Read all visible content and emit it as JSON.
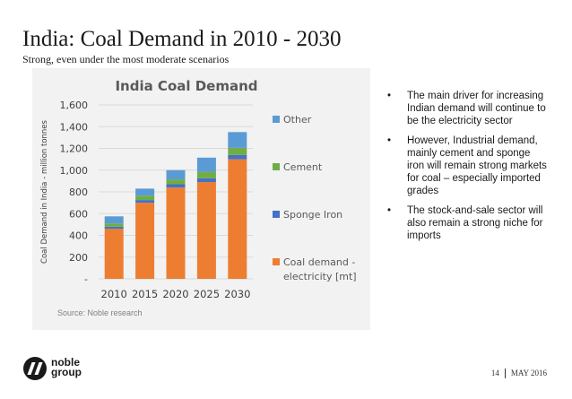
{
  "header": {
    "title": "India: Coal Demand in 2010 - 2030",
    "subtitle": "Strong, even under the most moderate scenarios"
  },
  "chart_data": {
    "type": "bar",
    "stacked": true,
    "title": "India Coal Demand",
    "ylabel": "Coal Demand in India - million tonnes",
    "xlabel": "",
    "categories": [
      "2010",
      "2015",
      "2020",
      "2025",
      "2030"
    ],
    "ylim": [
      0,
      1600
    ],
    "yticks": [
      0,
      200,
      400,
      600,
      800,
      1000,
      1200,
      1400,
      1600
    ],
    "ytick_labels": [
      "-",
      "200",
      "400",
      "600",
      "800",
      "1,000",
      "1,200",
      "1,400",
      "1,600"
    ],
    "grid": true,
    "legend_position": "right",
    "series": [
      {
        "name": "Coal demand - electricity [mt]",
        "color": "#ed7d31",
        "values": [
          460,
          700,
          840,
          890,
          1100
        ]
      },
      {
        "name": "Sponge Iron",
        "color": "#4472c4",
        "values": [
          20,
          25,
          30,
          35,
          40
        ]
      },
      {
        "name": "Cement",
        "color": "#70ad47",
        "values": [
          30,
          40,
          45,
          60,
          65
        ]
      },
      {
        "name": "Other",
        "color": "#5b9bd5",
        "values": [
          65,
          65,
          85,
          130,
          145
        ]
      }
    ],
    "legend_order": [
      "Other",
      "Cement",
      "Sponge Iron",
      "Coal demand - electricity [mt]"
    ],
    "source": "Source: Noble research"
  },
  "bullets": {
    "marker": "•",
    "items": [
      "The main driver for increasing Indian demand will continue to be the electricity sector",
      "However, Industrial demand, mainly cement and sponge iron will remain strong markets for coal – especially imported grades",
      "The stock-and-sale sector will also remain a strong niche for imports"
    ]
  },
  "logo": {
    "line1": "noble",
    "line2": "group"
  },
  "footer": {
    "page": "14",
    "date": "MAY 2016"
  }
}
